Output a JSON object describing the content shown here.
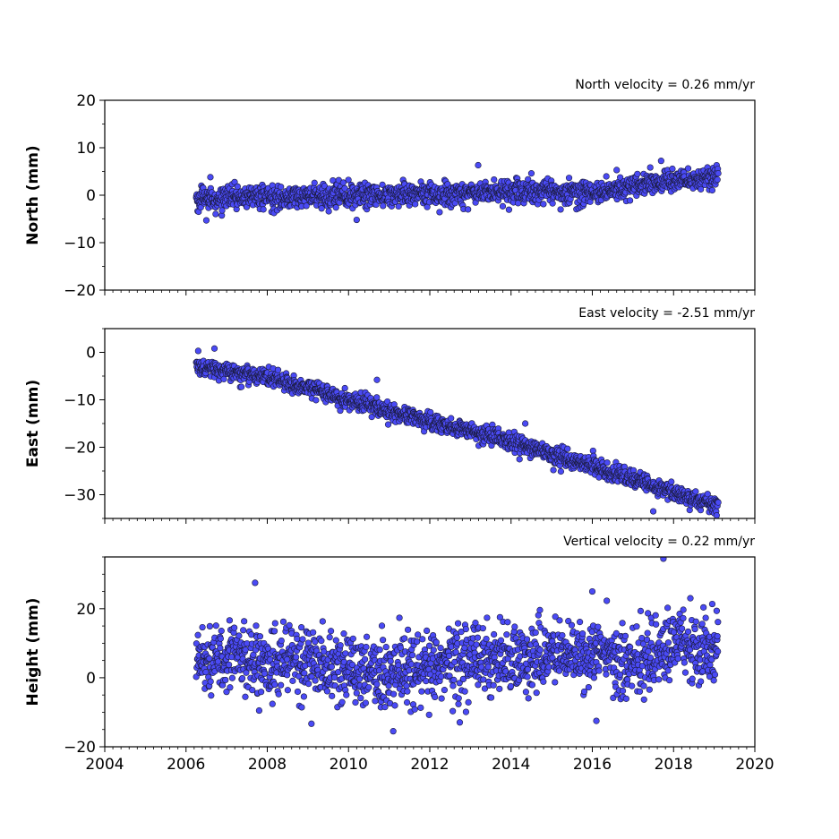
{
  "chart_data": [
    {
      "type": "scatter",
      "ylabel": "North (mm)",
      "annotation": "North velocity = 0.26 mm/yr",
      "velocity_mm_per_yr": 0.26,
      "xlim": [
        2004,
        2020
      ],
      "ylim": [
        -20,
        20
      ],
      "yticks": [
        -20,
        -10,
        0,
        10,
        20
      ],
      "yticklabels": [
        "−20",
        "−10",
        "0",
        "10",
        "20"
      ],
      "x_data_range": [
        2006.25,
        2019.1
      ],
      "trend": [
        [
          2006.3,
          -0.8
        ],
        [
          2010.0,
          -0.1
        ],
        [
          2013.0,
          0.6
        ],
        [
          2016.5,
          0.9
        ],
        [
          2017.5,
          2.8
        ],
        [
          2019.1,
          3.8
        ]
      ],
      "scatter_sd_mm": 1.2,
      "outliers": [
        [
          2006.5,
          -5.3
        ],
        [
          2006.6,
          3.8
        ],
        [
          2010.2,
          -5.2
        ],
        [
          2016.6,
          5.3
        ],
        [
          2014.5,
          4.6
        ]
      ],
      "marker_color": "#4a4af5",
      "marker_edge": "#1a1a3a"
    },
    {
      "type": "scatter",
      "ylabel": "East (mm)",
      "annotation": "East velocity = -2.51 mm/yr",
      "velocity_mm_per_yr": -2.51,
      "xlim": [
        2004,
        2020
      ],
      "ylim": [
        -35,
        5
      ],
      "yticks": [
        -30,
        -20,
        -10,
        0
      ],
      "yticklabels": [
        "−30",
        "−20",
        "−10",
        "0"
      ],
      "x_data_range": [
        2006.25,
        2019.1
      ],
      "trend": [
        [
          2006.3,
          -3.0
        ],
        [
          2008.0,
          -5.2
        ],
        [
          2010.0,
          -10.0
        ],
        [
          2012.0,
          -14.8
        ],
        [
          2014.0,
          -18.8
        ],
        [
          2016.0,
          -24.0
        ],
        [
          2018.0,
          -29.5
        ],
        [
          2019.1,
          -32.5
        ]
      ],
      "scatter_sd_mm": 0.9,
      "outliers": [
        [
          2010.7,
          -5.8
        ],
        [
          2014.35,
          -15.0
        ],
        [
          2006.3,
          0.3
        ],
        [
          2006.7,
          0.8
        ],
        [
          2017.5,
          -33.5
        ]
      ],
      "marker_color": "#4a4af5",
      "marker_edge": "#1a1a3a"
    },
    {
      "type": "scatter",
      "ylabel": "Height (mm)",
      "annotation": "Vertical velocity = 0.22 mm/yr",
      "velocity_mm_per_yr": 0.22,
      "xlim": [
        2004,
        2020
      ],
      "ylim": [
        -20,
        35
      ],
      "yticks": [
        -20,
        0,
        20
      ],
      "yticklabels": [
        "−20",
        "0",
        "20"
      ],
      "x_data_range": [
        2006.25,
        2019.1
      ],
      "trend": [
        [
          2006.3,
          6.0
        ],
        [
          2009.0,
          4.5
        ],
        [
          2011.0,
          0.5
        ],
        [
          2012.5,
          4.0
        ],
        [
          2014.0,
          6.0
        ],
        [
          2016.0,
          7.0
        ],
        [
          2017.0,
          4.0
        ],
        [
          2018.0,
          9.0
        ],
        [
          2019.1,
          10.0
        ]
      ],
      "scatter_sd_mm": 5.0,
      "outliers": [
        [
          2007.7,
          27.5
        ],
        [
          2017.75,
          34.5
        ],
        [
          2011.1,
          -15.5
        ],
        [
          2016.1,
          -12.5
        ],
        [
          2007.8,
          -9.5
        ],
        [
          2016.0,
          25.0
        ]
      ],
      "marker_color": "#4a4af5",
      "marker_edge": "#1a1a3a"
    }
  ],
  "shared_x": {
    "xticks": [
      2004,
      2006,
      2008,
      2010,
      2012,
      2014,
      2016,
      2018,
      2020
    ],
    "xticklabels": [
      "2004",
      "2006",
      "2008",
      "2010",
      "2012",
      "2014",
      "2016",
      "2018",
      "2020"
    ],
    "minor_per_major": 10
  }
}
